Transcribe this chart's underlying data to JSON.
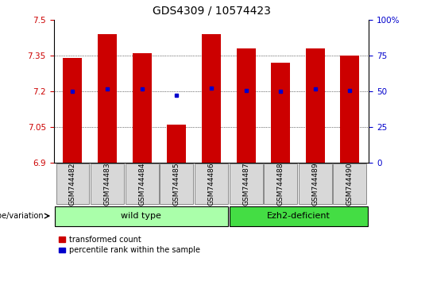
{
  "title": "GDS4309 / 10574423",
  "samples": [
    "GSM744482",
    "GSM744483",
    "GSM744484",
    "GSM744485",
    "GSM744486",
    "GSM744487",
    "GSM744488",
    "GSM744489",
    "GSM744490"
  ],
  "bar_heights": [
    7.34,
    7.44,
    7.36,
    7.06,
    7.44,
    7.38,
    7.32,
    7.38,
    7.35
  ],
  "blue_dots": [
    7.2,
    7.21,
    7.21,
    7.185,
    7.213,
    7.205,
    7.2,
    7.21,
    7.205
  ],
  "ylim": [
    6.9,
    7.5
  ],
  "yticks": [
    6.9,
    7.05,
    7.2,
    7.35,
    7.5
  ],
  "right_yticks_pct": [
    0,
    25,
    50,
    75,
    100
  ],
  "right_ytick_labels": [
    "0",
    "25",
    "50",
    "75",
    "100%"
  ],
  "bar_color": "#CC0000",
  "dot_color": "#0000CC",
  "bar_width": 0.55,
  "wild_type_label": "wild type",
  "ezh2_label": "Ezh2-deficient",
  "wt_color": "#aaffaa",
  "ezh2_color": "#44dd44",
  "xlabel_left": "genotype/variation",
  "legend_bar_label": "transformed count",
  "legend_dot_label": "percentile rank within the sample",
  "bg_color": "#ffffff",
  "tick_color_left": "#CC0000",
  "tick_color_right": "#0000CC",
  "title_color": "#000000",
  "ytick_label_fontsize": 7.5,
  "xtick_label_fontsize": 6.5,
  "title_fontsize": 10
}
